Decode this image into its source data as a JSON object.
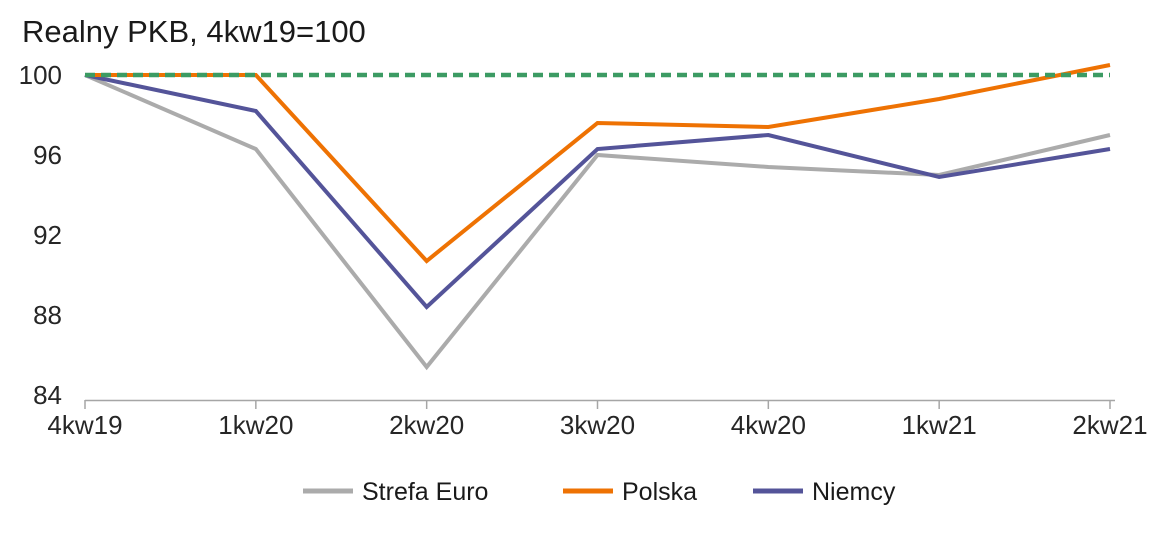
{
  "chart_data": {
    "type": "line",
    "title": "Realny PKB, 4kw19=100",
    "categories": [
      "4kw19",
      "1kw20",
      "2kw20",
      "3kw20",
      "4kw20",
      "1kw21",
      "2kw21"
    ],
    "series": [
      {
        "name": "Strefa Euro",
        "color": "#ababab",
        "values": [
          100,
          96.3,
          85.4,
          96.0,
          95.4,
          95.0,
          97.0
        ]
      },
      {
        "name": "Polska",
        "color": "#ee7203",
        "values": [
          100,
          100,
          90.7,
          97.6,
          97.4,
          98.8,
          100.5
        ]
      },
      {
        "name": "Niemcy",
        "color": "#545499",
        "values": [
          100,
          98.2,
          88.4,
          96.3,
          97.0,
          94.9,
          96.3
        ]
      }
    ],
    "reference_line": {
      "value": 100,
      "color": "#3c9b63",
      "style": "dashed"
    },
    "yticks": [
      100,
      96,
      92,
      88,
      84
    ],
    "ylim": [
      84,
      101
    ],
    "grid": false,
    "legend_position": "bottom",
    "axis_color": "#a6a6a6",
    "text_color": "#262626"
  }
}
